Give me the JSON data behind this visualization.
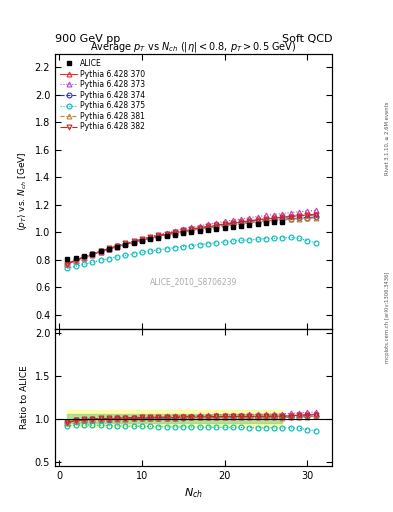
{
  "title_main": "Average $p_T$ vs $N_{ch}$ ($|\\eta| < 0.8$, $p_T > 0.5$ GeV)",
  "header_left": "900 GeV pp",
  "header_right": "Soft QCD",
  "right_label_top": "Rivet 3.1.10, ≥ 2.6M events",
  "right_label_bot": "mcplots.cern.ch [arXiv:1306.3436]",
  "watermark": "ALICE_2010_S8706239",
  "xlabel": "$N_{ch}$",
  "ylabel_main": "$\\langle p_T \\rangle$ vs. $N_{ch}$ [GeV]",
  "ylabel_ratio": "Ratio to ALICE",
  "ylim_main": [
    0.3,
    2.3
  ],
  "ylim_ratio": [
    0.45,
    2.05
  ],
  "xlim": [
    -0.5,
    33
  ],
  "yticks_main": [
    0.4,
    0.6,
    0.8,
    1.0,
    1.2,
    1.4,
    1.6,
    1.8,
    2.0,
    2.2
  ],
  "yticks_ratio": [
    0.5,
    1.0,
    1.5,
    2.0
  ],
  "xticks": [
    0,
    10,
    20,
    30
  ],
  "alice_x": [
    1,
    2,
    3,
    4,
    5,
    6,
    7,
    8,
    9,
    10,
    11,
    12,
    13,
    14,
    15,
    16,
    17,
    18,
    19,
    20,
    21,
    22,
    23,
    24,
    25,
    26,
    27
  ],
  "alice_y": [
    0.805,
    0.814,
    0.828,
    0.845,
    0.862,
    0.879,
    0.894,
    0.91,
    0.924,
    0.937,
    0.949,
    0.962,
    0.973,
    0.983,
    0.992,
    1.001,
    1.01,
    1.018,
    1.026,
    1.034,
    1.041,
    1.048,
    1.055,
    1.061,
    1.067,
    1.072,
    1.077
  ],
  "p370_x": [
    1,
    2,
    3,
    4,
    5,
    6,
    7,
    8,
    9,
    10,
    11,
    12,
    13,
    14,
    15,
    16,
    17,
    18,
    19,
    20,
    21,
    22,
    23,
    24,
    25,
    26,
    27,
    28,
    29,
    30,
    31
  ],
  "p370_y": [
    0.77,
    0.793,
    0.816,
    0.837,
    0.858,
    0.877,
    0.895,
    0.912,
    0.928,
    0.943,
    0.958,
    0.971,
    0.984,
    0.996,
    1.008,
    1.019,
    1.029,
    1.039,
    1.049,
    1.058,
    1.066,
    1.075,
    1.083,
    1.09,
    1.098,
    1.104,
    1.11,
    1.116,
    1.122,
    1.127,
    1.132
  ],
  "p373_x": [
    1,
    2,
    3,
    4,
    5,
    6,
    7,
    8,
    9,
    10,
    11,
    12,
    13,
    14,
    15,
    16,
    17,
    18,
    19,
    20,
    21,
    22,
    23,
    24,
    25,
    26,
    27,
    28,
    29,
    30,
    31
  ],
  "p373_y": [
    0.769,
    0.793,
    0.817,
    0.839,
    0.86,
    0.88,
    0.9,
    0.918,
    0.936,
    0.953,
    0.969,
    0.984,
    0.998,
    1.012,
    1.025,
    1.037,
    1.048,
    1.059,
    1.07,
    1.08,
    1.089,
    1.098,
    1.107,
    1.115,
    1.123,
    1.13,
    1.137,
    1.144,
    1.15,
    1.155,
    1.16
  ],
  "p374_x": [
    1,
    2,
    3,
    4,
    5,
    6,
    7,
    8,
    9,
    10,
    11,
    12,
    13,
    14,
    15,
    16,
    17,
    18,
    19,
    20,
    21,
    22,
    23,
    24,
    25,
    26,
    27,
    28,
    29,
    30,
    31
  ],
  "p374_y": [
    0.773,
    0.797,
    0.82,
    0.841,
    0.861,
    0.88,
    0.898,
    0.914,
    0.93,
    0.944,
    0.958,
    0.971,
    0.983,
    0.994,
    1.005,
    1.015,
    1.025,
    1.034,
    1.042,
    1.05,
    1.058,
    1.065,
    1.072,
    1.079,
    1.085,
    1.09,
    1.095,
    1.1,
    1.104,
    1.108,
    1.111
  ],
  "p375_x": [
    1,
    2,
    3,
    4,
    5,
    6,
    7,
    8,
    9,
    10,
    11,
    12,
    13,
    14,
    15,
    16,
    17,
    18,
    19,
    20,
    21,
    22,
    23,
    24,
    25,
    26,
    27,
    28,
    29,
    30,
    31
  ],
  "p375_y": [
    0.737,
    0.753,
    0.768,
    0.782,
    0.796,
    0.809,
    0.821,
    0.833,
    0.843,
    0.854,
    0.863,
    0.873,
    0.881,
    0.889,
    0.897,
    0.904,
    0.911,
    0.918,
    0.924,
    0.93,
    0.936,
    0.941,
    0.946,
    0.95,
    0.954,
    0.957,
    0.96,
    0.963,
    0.956,
    0.94,
    0.925
  ],
  "p381_x": [
    1,
    2,
    3,
    4,
    5,
    6,
    7,
    8,
    9,
    10,
    11,
    12,
    13,
    14,
    15,
    16,
    17,
    18,
    19,
    20,
    21,
    22,
    23,
    24,
    25,
    26,
    27,
    28,
    29,
    30,
    31
  ],
  "p381_y": [
    0.773,
    0.797,
    0.82,
    0.842,
    0.862,
    0.881,
    0.899,
    0.916,
    0.931,
    0.946,
    0.96,
    0.972,
    0.984,
    0.995,
    1.006,
    1.016,
    1.025,
    1.034,
    1.042,
    1.05,
    1.057,
    1.064,
    1.07,
    1.076,
    1.082,
    1.087,
    1.091,
    1.095,
    1.099,
    1.102,
    1.105
  ],
  "p382_x": [
    1,
    2,
    3,
    4,
    5,
    6,
    7,
    8,
    9,
    10,
    11,
    12,
    13,
    14,
    15,
    16,
    17,
    18,
    19,
    20,
    21,
    22,
    23,
    24,
    25,
    26,
    27,
    28,
    29,
    30,
    31
  ],
  "p382_y": [
    0.773,
    0.797,
    0.821,
    0.843,
    0.864,
    0.883,
    0.902,
    0.919,
    0.935,
    0.951,
    0.965,
    0.978,
    0.991,
    1.003,
    1.014,
    1.025,
    1.035,
    1.044,
    1.053,
    1.062,
    1.07,
    1.077,
    1.085,
    1.091,
    1.098,
    1.104,
    1.109,
    1.114,
    1.119,
    1.123,
    1.127
  ],
  "color_370": "#dd3333",
  "color_373": "#bb44bb",
  "color_374": "#3333bb",
  "color_375": "#00bbbb",
  "color_381": "#bb8833",
  "color_382": "#cc2222",
  "band_yellow": "#ffff88",
  "band_green": "#88cc88",
  "bg_color": "#ffffff"
}
